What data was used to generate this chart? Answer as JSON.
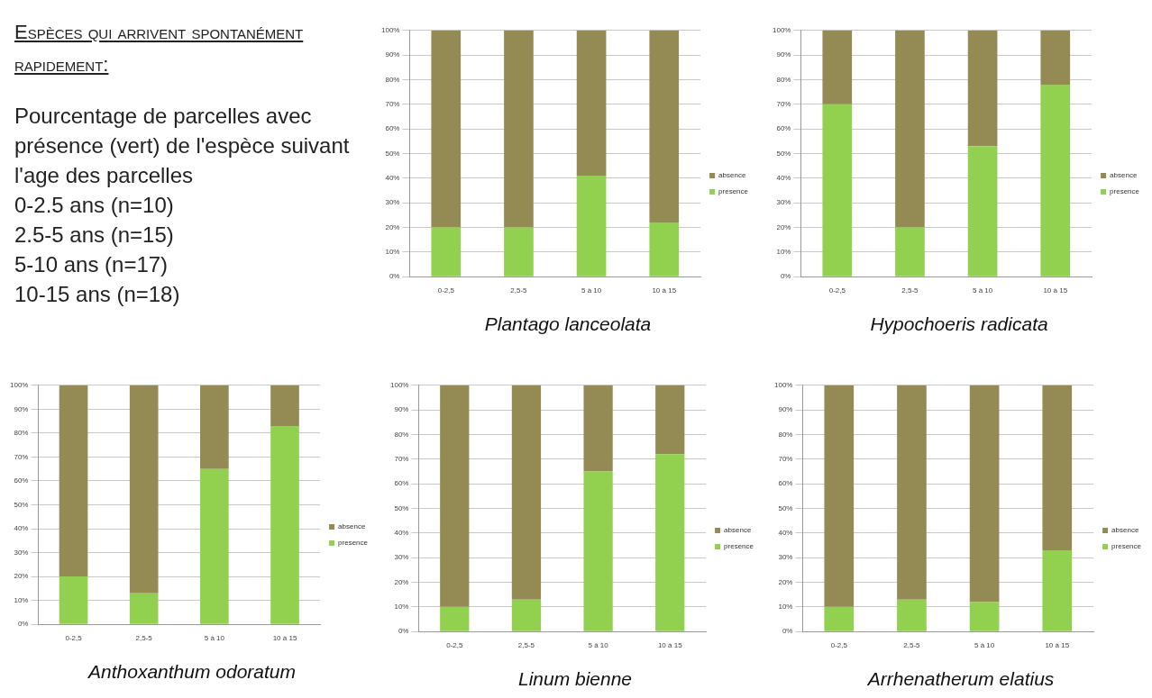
{
  "chart_data": [
    {
      "type": "other",
      "title": "Espèces qui arrivent spontanément rapidement:",
      "annotations": [
        "Pourcentage de parcelles avec présence (vert) de l'espèce suivant l'age des parcelles",
        "0-2.5 ans (n=10)",
        "2.5-5 ans (n=15)",
        "5-10 ans (n=17)",
        "10-15 ans (n=18)"
      ]
    },
    {
      "type": "bar",
      "title": "Plantago lanceolata",
      "categories": [
        "0-2,5",
        "2,5-5",
        "5 à 10",
        "10 à 15"
      ],
      "stacked": true,
      "grid": "y",
      "legend": "right",
      "ylim": [
        0,
        100
      ],
      "yticks": [
        {
          "value": 0,
          "label": "0%"
        },
        {
          "value": 10,
          "label": "10%"
        },
        {
          "value": 20,
          "label": "20%"
        },
        {
          "value": 30,
          "label": "30%"
        },
        {
          "value": 40,
          "label": "40%"
        },
        {
          "value": 50,
          "label": "50%"
        },
        {
          "value": 60,
          "label": "60%"
        },
        {
          "value": 70,
          "label": "70%"
        },
        {
          "value": 80,
          "label": "80%"
        },
        {
          "value": 90,
          "label": "90%"
        },
        {
          "value": 100,
          "label": "100%"
        }
      ],
      "series": [
        {
          "name": "presence",
          "color": "#92d050",
          "values": [
            20,
            20,
            41,
            22
          ]
        },
        {
          "name": "absence",
          "color": "#948a54",
          "values": [
            80,
            80,
            59,
            78
          ]
        }
      ]
    },
    {
      "type": "bar",
      "title": "Hypochoeris radicata",
      "categories": [
        "0-2,5",
        "2,5-5",
        "5 à 10",
        "10 à 15"
      ],
      "stacked": true,
      "grid": "y",
      "legend": "right",
      "ylim": [
        0,
        100
      ],
      "yticks": [
        {
          "value": 0,
          "label": "0%"
        },
        {
          "value": 10,
          "label": "10%"
        },
        {
          "value": 20,
          "label": "20%"
        },
        {
          "value": 30,
          "label": "30%"
        },
        {
          "value": 40,
          "label": "40%"
        },
        {
          "value": 50,
          "label": "50%"
        },
        {
          "value": 60,
          "label": "60%"
        },
        {
          "value": 70,
          "label": "70%"
        },
        {
          "value": 80,
          "label": "80%"
        },
        {
          "value": 90,
          "label": "90%"
        },
        {
          "value": 100,
          "label": "100%"
        }
      ],
      "series": [
        {
          "name": "presence",
          "color": "#92d050",
          "values": [
            70,
            20,
            53,
            78
          ]
        },
        {
          "name": "absence",
          "color": "#948a54",
          "values": [
            30,
            80,
            47,
            22
          ]
        }
      ]
    },
    {
      "type": "bar",
      "title": "Anthoxanthum odoratum",
      "categories": [
        "0-2,5",
        "2,5-5",
        "5 à 10",
        "10 à 15"
      ],
      "stacked": true,
      "grid": "y",
      "legend": "right",
      "ylim": [
        0,
        100
      ],
      "yticks": [
        {
          "value": 0,
          "label": "0%"
        },
        {
          "value": 10,
          "label": "10%"
        },
        {
          "value": 20,
          "label": "20%"
        },
        {
          "value": 30,
          "label": "30%"
        },
        {
          "value": 40,
          "label": "40%"
        },
        {
          "value": 50,
          "label": "50%"
        },
        {
          "value": 60,
          "label": "60%"
        },
        {
          "value": 70,
          "label": "70%"
        },
        {
          "value": 80,
          "label": "80%"
        },
        {
          "value": 90,
          "label": "90%"
        },
        {
          "value": 100,
          "label": "100%"
        }
      ],
      "series": [
        {
          "name": "presence",
          "color": "#92d050",
          "values": [
            20,
            13,
            65,
            83
          ]
        },
        {
          "name": "absence",
          "color": "#948a54",
          "values": [
            80,
            87,
            35,
            17
          ]
        }
      ]
    },
    {
      "type": "bar",
      "title": "Linum bienne",
      "categories": [
        "0-2,5",
        "2,5-5",
        "5 à 10",
        "10 à 15"
      ],
      "stacked": true,
      "grid": "y",
      "legend": "right",
      "ylim": [
        0,
        100
      ],
      "yticks": [
        {
          "value": 0,
          "label": "0%"
        },
        {
          "value": 10,
          "label": "10%"
        },
        {
          "value": 20,
          "label": "20%"
        },
        {
          "value": 30,
          "label": "30%"
        },
        {
          "value": 40,
          "label": "40%"
        },
        {
          "value": 50,
          "label": "50%"
        },
        {
          "value": 60,
          "label": "60%"
        },
        {
          "value": 70,
          "label": "70%"
        },
        {
          "value": 80,
          "label": "80%"
        },
        {
          "value": 90,
          "label": "90%"
        },
        {
          "value": 100,
          "label": "100%"
        }
      ],
      "series": [
        {
          "name": "presence",
          "color": "#92d050",
          "values": [
            10,
            13,
            65,
            72
          ]
        },
        {
          "name": "absence",
          "color": "#948a54",
          "values": [
            90,
            87,
            35,
            28
          ]
        }
      ]
    },
    {
      "type": "bar",
      "title": "Arrhenatherum elatius",
      "categories": [
        "0-2,5",
        "2,5-5",
        "5 à 10",
        "10 à 15"
      ],
      "stacked": true,
      "grid": "y",
      "legend": "right",
      "ylim": [
        0,
        100
      ],
      "yticks": [
        {
          "value": 0,
          "label": "0%"
        },
        {
          "value": 10,
          "label": "10%"
        },
        {
          "value": 20,
          "label": "20%"
        },
        {
          "value": 30,
          "label": "30%"
        },
        {
          "value": 40,
          "label": "40%"
        },
        {
          "value": 50,
          "label": "50%"
        },
        {
          "value": 60,
          "label": "60%"
        },
        {
          "value": 70,
          "label": "70%"
        },
        {
          "value": 80,
          "label": "80%"
        },
        {
          "value": 90,
          "label": "90%"
        },
        {
          "value": 100,
          "label": "100%"
        }
      ],
      "series": [
        {
          "name": "presence",
          "color": "#92d050",
          "values": [
            10,
            13,
            12,
            33
          ]
        },
        {
          "name": "absence",
          "color": "#948a54",
          "values": [
            90,
            87,
            88,
            67
          ]
        }
      ]
    }
  ]
}
